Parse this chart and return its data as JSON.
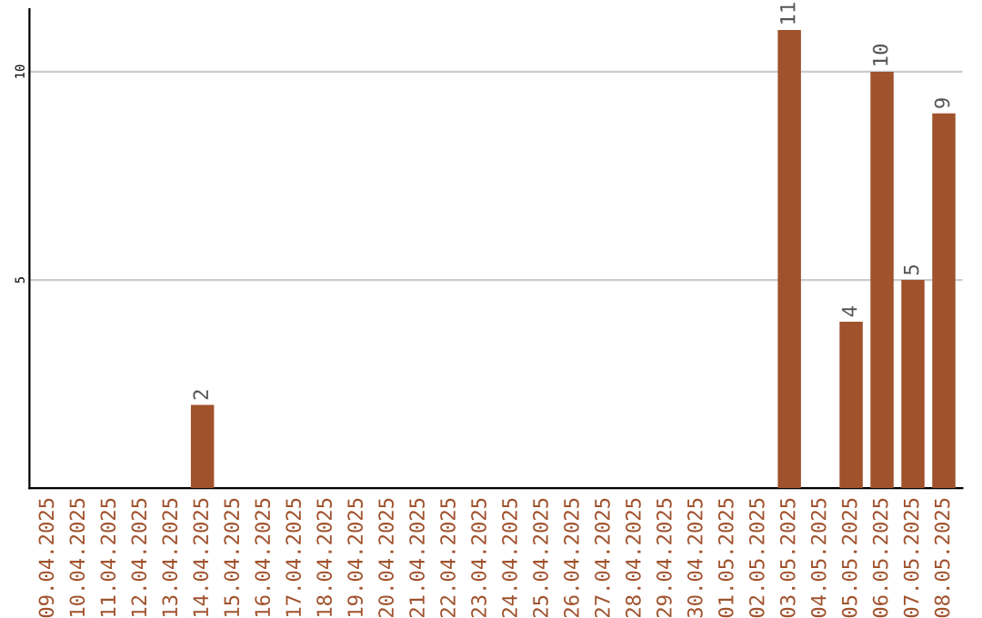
{
  "chart_data": {
    "type": "bar",
    "categories": [
      "09.04.2025",
      "10.04.2025",
      "11.04.2025",
      "12.04.2025",
      "13.04.2025",
      "14.04.2025",
      "15.04.2025",
      "16.04.2025",
      "17.04.2025",
      "18.04.2025",
      "19.04.2025",
      "20.04.2025",
      "21.04.2025",
      "22.04.2025",
      "23.04.2025",
      "24.04.2025",
      "25.04.2025",
      "26.04.2025",
      "27.04.2025",
      "28.04.2025",
      "29.04.2025",
      "30.04.2025",
      "01.05.2025",
      "02.05.2025",
      "03.05.2025",
      "04.05.2025",
      "05.05.2025",
      "06.05.2025",
      "07.05.2025",
      "08.05.2025"
    ],
    "values": [
      0,
      0,
      0,
      0,
      0,
      2,
      0,
      0,
      0,
      0,
      0,
      0,
      0,
      0,
      0,
      0,
      0,
      0,
      0,
      0,
      0,
      0,
      0,
      0,
      11,
      0,
      4,
      10,
      5,
      9
    ],
    "value_labels": [
      null,
      null,
      null,
      null,
      null,
      "2",
      null,
      null,
      null,
      null,
      null,
      null,
      null,
      null,
      null,
      null,
      null,
      null,
      null,
      null,
      null,
      null,
      null,
      null,
      "11",
      null,
      "4",
      "10",
      "5",
      "9"
    ],
    "color": "#a0522d",
    "ylim": [
      0,
      11.5
    ],
    "yticks": [
      5,
      10
    ],
    "grid": "y",
    "legend": false
  }
}
